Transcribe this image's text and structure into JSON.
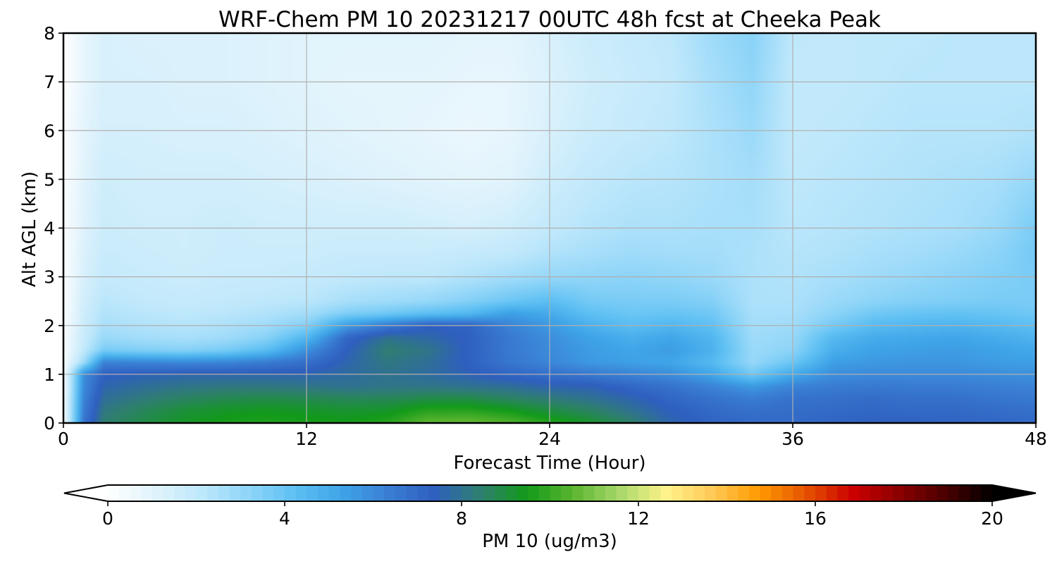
{
  "chart_data": {
    "type": "heatmap",
    "title": "WRF-Chem PM 10  20231217 00UTC 48h fcst at Cheeka Peak",
    "xlabel": "Forecast Time (Hour)",
    "ylabel": "Alt AGL (km)",
    "xlim": [
      0,
      48
    ],
    "ylim": [
      0,
      8
    ],
    "xticks": [
      0,
      12,
      24,
      36,
      48
    ],
    "yticks": [
      0,
      1,
      2,
      3,
      4,
      5,
      6,
      7,
      8
    ],
    "grid": true,
    "colorbar": {
      "label": "PM 10  (ug/m3)",
      "min": 0,
      "max": 20,
      "ticks": [
        0,
        4,
        8,
        12,
        16,
        20
      ],
      "extend": "both",
      "colors": [
        "#ffffff",
        "#e0f3fc",
        "#bfe8fb",
        "#8fd5f8",
        "#5ec0f3",
        "#3fa5e8",
        "#3a7fd4",
        "#2f5fc0",
        "#2f7f6f",
        "#129a1a",
        "#5cb52f",
        "#a8d86a",
        "#fff38a",
        "#ffc955",
        "#ff9900",
        "#e55300",
        "#cc0000",
        "#8b0000",
        "#4a0000",
        "#000000"
      ]
    },
    "x": [
      0,
      1,
      2,
      4,
      6,
      8,
      10,
      12,
      14,
      16,
      18,
      20,
      22,
      24,
      26,
      28,
      30,
      32,
      34,
      36,
      38,
      40,
      42,
      44,
      46,
      48
    ],
    "y": [
      0,
      0.25,
      0.5,
      0.75,
      1,
      1.25,
      1.5,
      1.75,
      2,
      2.25,
      2.5,
      3,
      3.5,
      4,
      5,
      6,
      7,
      8
    ],
    "z": [
      [
        0.3,
        6.6,
        8.4,
        8.9,
        9.3,
        9.6,
        9.7,
        9.6,
        9.5,
        9.8,
        10.6,
        10.7,
        10.4,
        9.8,
        9.2,
        8.5,
        7.6,
        7.2,
        7.0,
        7.0,
        7.2,
        7.3,
        7.3,
        7.2,
        7.1,
        7.0
      ],
      [
        0.3,
        6.4,
        8.2,
        8.7,
        9.1,
        9.3,
        9.4,
        9.3,
        9.2,
        9.3,
        9.8,
        9.8,
        9.5,
        9.0,
        8.6,
        8.0,
        7.4,
        7.0,
        6.8,
        6.9,
        7.0,
        7.1,
        7.0,
        7.0,
        6.9,
        6.8
      ],
      [
        0.3,
        6.2,
        7.9,
        8.3,
        8.6,
        8.8,
        8.9,
        8.8,
        8.7,
        8.7,
        8.9,
        8.9,
        8.6,
        8.3,
        8.0,
        7.6,
        7.1,
        6.7,
        6.4,
        6.7,
        6.8,
        6.9,
        6.8,
        6.8,
        6.6,
        6.5
      ],
      [
        0.2,
        6.0,
        7.6,
        7.9,
        8.1,
        8.2,
        8.2,
        8.1,
        8.0,
        8.1,
        8.1,
        8.0,
        7.9,
        7.6,
        7.5,
        7.1,
        6.7,
        6.2,
        5.6,
        6.2,
        6.4,
        6.5,
        6.4,
        6.4,
        6.3,
        6.2
      ],
      [
        0.2,
        5.9,
        7.3,
        7.5,
        7.6,
        7.6,
        7.6,
        7.6,
        7.8,
        8.0,
        7.8,
        7.5,
        7.1,
        6.8,
        6.5,
        6.2,
        5.9,
        5.2,
        3.8,
        5.1,
        5.9,
        6.0,
        6.0,
        6.0,
        5.9,
        5.8
      ],
      [
        0.2,
        2.8,
        6.2,
        6.1,
        6.0,
        6.1,
        6.4,
        6.8,
        7.6,
        8.2,
        7.9,
        7.3,
        6.6,
        6.1,
        5.6,
        5.4,
        5.2,
        4.5,
        3.0,
        3.9,
        5.4,
        5.6,
        5.7,
        5.7,
        5.5,
        5.4
      ],
      [
        0.2,
        2.0,
        3.6,
        3.4,
        3.3,
        3.6,
        4.3,
        5.8,
        7.4,
        8.4,
        8.1,
        7.3,
        6.5,
        6.0,
        5.5,
        5.2,
        5.5,
        4.8,
        2.9,
        3.2,
        4.9,
        5.3,
        5.4,
        5.5,
        5.3,
        5.1
      ],
      [
        0.2,
        1.8,
        2.9,
        2.7,
        2.6,
        2.8,
        3.3,
        4.6,
        7.1,
        8.0,
        7.7,
        7.3,
        6.5,
        5.9,
        5.3,
        4.9,
        5.2,
        4.6,
        2.8,
        3.0,
        4.5,
        5.0,
        5.1,
        5.2,
        5.0,
        4.7
      ],
      [
        0.1,
        1.7,
        2.6,
        2.4,
        2.3,
        2.5,
        2.8,
        3.4,
        5.5,
        6.5,
        7.3,
        7.2,
        6.2,
        5.6,
        4.8,
        4.3,
        4.6,
        4.2,
        2.7,
        2.8,
        3.7,
        4.4,
        4.6,
        4.7,
        4.5,
        4.2
      ],
      [
        0.1,
        1.6,
        2.4,
        2.2,
        2.1,
        2.2,
        2.4,
        2.7,
        3.5,
        3.8,
        4.2,
        4.5,
        5.4,
        5.0,
        4.2,
        3.9,
        4.0,
        3.8,
        2.6,
        2.6,
        3.2,
        3.8,
        4.0,
        4.1,
        4.0,
        3.8
      ],
      [
        0.1,
        1.5,
        2.2,
        2.0,
        1.9,
        2.0,
        2.1,
        2.2,
        2.6,
        2.8,
        3.0,
        3.4,
        3.9,
        4.3,
        3.7,
        3.6,
        3.6,
        3.4,
        2.5,
        2.5,
        2.9,
        3.2,
        3.4,
        3.5,
        3.6,
        3.6
      ],
      [
        0.1,
        1.3,
        1.9,
        1.8,
        1.7,
        1.8,
        1.8,
        1.9,
        2.0,
        2.1,
        2.1,
        2.4,
        2.7,
        3.0,
        3.1,
        3.2,
        3.1,
        2.9,
        2.5,
        2.4,
        2.6,
        2.8,
        3.0,
        3.2,
        3.4,
        3.6
      ],
      [
        0.1,
        1.2,
        1.8,
        1.7,
        1.6,
        1.7,
        1.7,
        1.7,
        1.8,
        1.8,
        1.8,
        1.9,
        2.0,
        2.4,
        2.6,
        2.8,
        2.7,
        2.7,
        2.5,
        2.3,
        2.4,
        2.6,
        2.7,
        2.9,
        3.2,
        3.7
      ],
      [
        0.1,
        1.1,
        1.7,
        1.6,
        1.6,
        1.7,
        1.6,
        1.6,
        1.6,
        1.6,
        1.5,
        1.4,
        1.6,
        2.0,
        2.3,
        2.5,
        2.5,
        2.6,
        2.6,
        2.2,
        2.3,
        2.4,
        2.5,
        2.6,
        2.9,
        3.6
      ],
      [
        0.1,
        1.0,
        1.6,
        1.5,
        1.5,
        1.5,
        1.4,
        1.3,
        1.2,
        1.1,
        1.0,
        0.9,
        1.0,
        1.6,
        2.0,
        2.2,
        2.3,
        2.5,
        2.7,
        2.1,
        2.2,
        2.3,
        2.4,
        2.5,
        2.6,
        3.0
      ],
      [
        0.1,
        0.9,
        1.4,
        1.4,
        1.3,
        1.3,
        1.2,
        1.1,
        1.0,
        0.9,
        0.8,
        0.7,
        0.8,
        1.3,
        1.7,
        1.9,
        2.1,
        2.5,
        2.9,
        2.0,
        2.1,
        2.2,
        2.3,
        2.3,
        2.3,
        2.4
      ],
      [
        0.0,
        0.8,
        1.3,
        1.3,
        1.2,
        1.2,
        1.1,
        1.0,
        0.9,
        0.9,
        0.9,
        0.8,
        0.8,
        1.2,
        1.6,
        1.8,
        2.0,
        2.6,
        3.1,
        2.0,
        2.0,
        2.1,
        2.2,
        2.2,
        2.2,
        2.2
      ],
      [
        0.0,
        0.8,
        1.3,
        1.2,
        1.2,
        1.2,
        1.1,
        1.0,
        1.0,
        1.0,
        1.0,
        0.9,
        0.9,
        1.3,
        1.7,
        1.9,
        2.1,
        2.8,
        3.3,
        2.1,
        2.0,
        2.1,
        2.1,
        2.2,
        2.2,
        2.2
      ]
    ]
  }
}
